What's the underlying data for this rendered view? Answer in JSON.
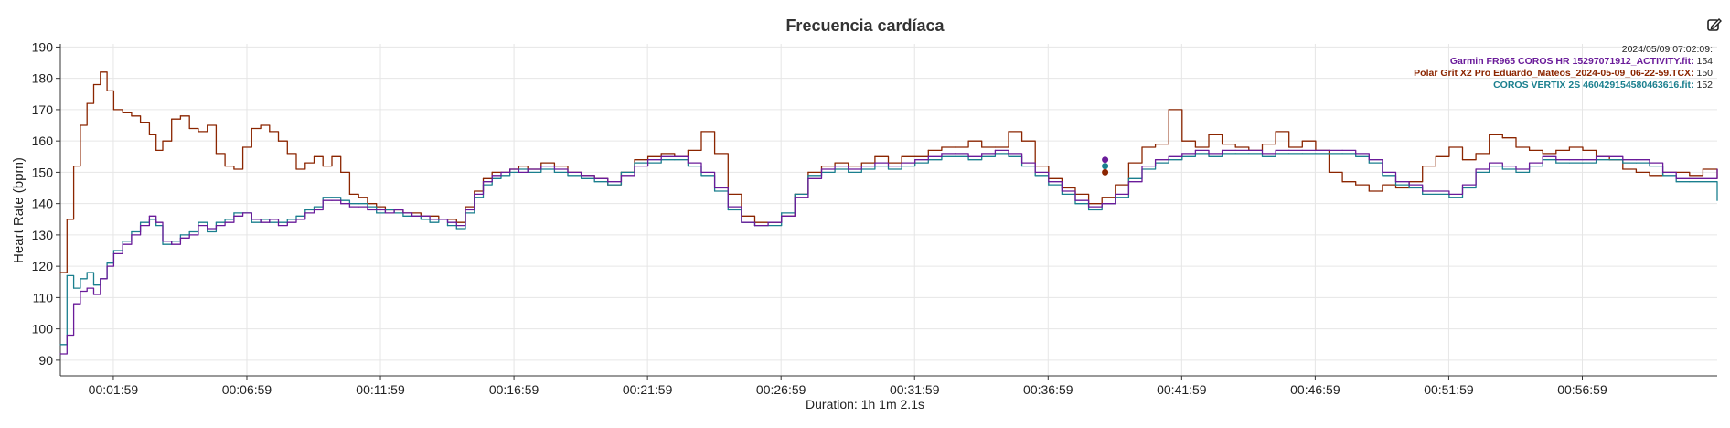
{
  "chart_data": {
    "type": "line",
    "title": "Frecuencia cardíaca",
    "ylabel": "Heart Rate (bpm)",
    "xlabel": "Duration: 1h 1m 2.1s",
    "ylim": [
      85,
      191
    ],
    "xlim": [
      0,
      3722
    ],
    "yticks": [
      90,
      100,
      110,
      120,
      130,
      140,
      150,
      160,
      170,
      180,
      190
    ],
    "xticks": [
      {
        "t": 119,
        "label": "00:01:59"
      },
      {
        "t": 419,
        "label": "00:06:59"
      },
      {
        "t": 719,
        "label": "00:11:59"
      },
      {
        "t": 1019,
        "label": "00:16:59"
      },
      {
        "t": 1319,
        "label": "00:21:59"
      },
      {
        "t": 1619,
        "label": "00:26:59"
      },
      {
        "t": 1919,
        "label": "00:31:59"
      },
      {
        "t": 2219,
        "label": "00:36:59"
      },
      {
        "t": 2519,
        "label": "00:41:59"
      },
      {
        "t": 2819,
        "label": "00:46:59"
      },
      {
        "t": 3119,
        "label": "00:51:59"
      },
      {
        "t": 3419,
        "label": "00:56:59"
      }
    ],
    "grid": true,
    "legend_position": "top-right",
    "tooltip": {
      "timestamp": "2024/05/09 07:02:09:",
      "entries": [
        {
          "name": "Garmin FR965 COROS HR 15297071912_ACTIVITY.fit:",
          "value": "154",
          "color": "#6a1b9a"
        },
        {
          "name": "Polar Grit X2 Pro Eduardo_Mateos_2024-05-09_06-22-59.TCX:",
          "value": "150",
          "color": "#8b2500"
        },
        {
          "name": "COROS VERTIX 2S 460429154580463616.fit:",
          "value": "152",
          "color": "#1a7f8e"
        }
      ]
    },
    "series": [
      {
        "name": "Garmin FR965 COROS HR 15297071912_ACTIVITY.fit",
        "color": "#6a1b9a",
        "x": [
          0,
          15,
          30,
          45,
          60,
          75,
          90,
          105,
          120,
          140,
          160,
          180,
          200,
          215,
          230,
          250,
          270,
          290,
          310,
          330,
          350,
          370,
          390,
          410,
          430,
          450,
          470,
          490,
          510,
          530,
          550,
          570,
          590,
          610,
          630,
          650,
          670,
          690,
          710,
          730,
          750,
          770,
          790,
          810,
          830,
          850,
          870,
          890,
          910,
          930,
          950,
          970,
          990,
          1010,
          1030,
          1050,
          1080,
          1110,
          1140,
          1170,
          1200,
          1230,
          1260,
          1290,
          1320,
          1350,
          1380,
          1410,
          1440,
          1470,
          1500,
          1530,
          1560,
          1590,
          1620,
          1650,
          1680,
          1710,
          1740,
          1770,
          1800,
          1830,
          1860,
          1890,
          1920,
          1950,
          1980,
          2010,
          2040,
          2070,
          2100,
          2130,
          2160,
          2190,
          2220,
          2250,
          2280,
          2310,
          2340,
          2370,
          2400,
          2430,
          2460,
          2490,
          2520,
          2550,
          2580,
          2610,
          2640,
          2670,
          2700,
          2730,
          2760,
          2790,
          2820,
          2850,
          2880,
          2910,
          2940,
          2970,
          3000,
          3030,
          3060,
          3090,
          3120,
          3150,
          3180,
          3210,
          3240,
          3270,
          3300,
          3330,
          3360,
          3390,
          3420,
          3450,
          3480,
          3510,
          3540,
          3570,
          3600,
          3630,
          3660,
          3690,
          3722
        ],
        "values": [
          92,
          98,
          108,
          112,
          113,
          111,
          116,
          120,
          124,
          127,
          130,
          133,
          136,
          134,
          128,
          127,
          129,
          130,
          133,
          132,
          133,
          134,
          136,
          137,
          135,
          134,
          135,
          133,
          134,
          135,
          137,
          138,
          141,
          141,
          140,
          139,
          139,
          138,
          138,
          137,
          138,
          137,
          136,
          136,
          135,
          135,
          134,
          133,
          138,
          143,
          147,
          149,
          150,
          151,
          150,
          151,
          152,
          151,
          150,
          149,
          148,
          147,
          149,
          152,
          154,
          155,
          155,
          153,
          150,
          145,
          139,
          134,
          133,
          134,
          136,
          142,
          148,
          151,
          152,
          151,
          152,
          153,
          152,
          153,
          154,
          155,
          156,
          156,
          155,
          156,
          157,
          156,
          153,
          150,
          147,
          144,
          141,
          139,
          140,
          143,
          147,
          152,
          154,
          155,
          156,
          157,
          156,
          157,
          157,
          157,
          156,
          157,
          157,
          157,
          157,
          157,
          157,
          156,
          154,
          150,
          147,
          146,
          144,
          144,
          143,
          146,
          151,
          153,
          152,
          151,
          153,
          155,
          154,
          154,
          154,
          155,
          155,
          154,
          154,
          153,
          150,
          148,
          148,
          148,
          151
        ]
      },
      {
        "name": "Polar Grit X2 Pro Eduardo_Mateos_2024-05-09_06-22-59.TCX",
        "color": "#8b2500",
        "x": [
          0,
          15,
          30,
          45,
          60,
          75,
          90,
          105,
          120,
          140,
          160,
          180,
          200,
          215,
          230,
          250,
          270,
          290,
          310,
          330,
          350,
          370,
          390,
          410,
          430,
          450,
          470,
          490,
          510,
          530,
          550,
          570,
          590,
          610,
          630,
          650,
          670,
          690,
          710,
          730,
          750,
          770,
          790,
          810,
          830,
          850,
          870,
          890,
          910,
          930,
          950,
          970,
          990,
          1010,
          1030,
          1050,
          1080,
          1110,
          1140,
          1170,
          1200,
          1230,
          1260,
          1290,
          1320,
          1350,
          1380,
          1410,
          1440,
          1470,
          1500,
          1530,
          1560,
          1590,
          1620,
          1650,
          1680,
          1710,
          1740,
          1770,
          1800,
          1830,
          1860,
          1890,
          1920,
          1950,
          1980,
          2010,
          2040,
          2070,
          2100,
          2130,
          2160,
          2190,
          2220,
          2250,
          2280,
          2310,
          2340,
          2370,
          2400,
          2430,
          2460,
          2490,
          2520,
          2550,
          2580,
          2610,
          2640,
          2670,
          2700,
          2730,
          2760,
          2790,
          2820,
          2850,
          2880,
          2910,
          2940,
          2970,
          3000,
          3030,
          3060,
          3090,
          3120,
          3150,
          3180,
          3210,
          3240,
          3270,
          3300,
          3330,
          3360,
          3390,
          3420,
          3450,
          3480,
          3510,
          3540,
          3570,
          3600,
          3630,
          3660,
          3690,
          3722
        ],
        "values": [
          118,
          135,
          152,
          165,
          172,
          178,
          182,
          176,
          170,
          169,
          168,
          166,
          162,
          157,
          160,
          167,
          168,
          164,
          163,
          165,
          156,
          152,
          151,
          158,
          164,
          165,
          163,
          160,
          156,
          151,
          153,
          155,
          152,
          155,
          150,
          143,
          142,
          140,
          139,
          138,
          138,
          137,
          137,
          136,
          136,
          135,
          135,
          134,
          139,
          144,
          148,
          150,
          150,
          151,
          152,
          151,
          153,
          152,
          150,
          149,
          148,
          146,
          150,
          154,
          155,
          156,
          155,
          157,
          163,
          156,
          143,
          136,
          134,
          134,
          136,
          143,
          150,
          152,
          153,
          152,
          153,
          155,
          153,
          155,
          155,
          157,
          158,
          158,
          160,
          158,
          158,
          163,
          160,
          152,
          148,
          145,
          143,
          140,
          142,
          146,
          153,
          158,
          159,
          170,
          160,
          158,
          162,
          159,
          158,
          157,
          159,
          163,
          158,
          160,
          157,
          150,
          147,
          146,
          144,
          146,
          145,
          147,
          152,
          155,
          158,
          154,
          156,
          162,
          161,
          158,
          157,
          156,
          157,
          158,
          157,
          155,
          154,
          151,
          150,
          149,
          150,
          150,
          149,
          151,
          148
        ]
      },
      {
        "name": "COROS VERTIX 2S 460429154580463616.fit",
        "color": "#1a7f8e",
        "x": [
          0,
          15,
          30,
          45,
          60,
          75,
          90,
          105,
          120,
          140,
          160,
          180,
          200,
          215,
          230,
          250,
          270,
          290,
          310,
          330,
          350,
          370,
          390,
          410,
          430,
          450,
          470,
          490,
          510,
          530,
          550,
          570,
          590,
          610,
          630,
          650,
          670,
          690,
          710,
          730,
          750,
          770,
          790,
          810,
          830,
          850,
          870,
          890,
          910,
          930,
          950,
          970,
          990,
          1010,
          1030,
          1050,
          1080,
          1110,
          1140,
          1170,
          1200,
          1230,
          1260,
          1290,
          1320,
          1350,
          1380,
          1410,
          1440,
          1470,
          1500,
          1530,
          1560,
          1590,
          1620,
          1650,
          1680,
          1710,
          1740,
          1770,
          1800,
          1830,
          1860,
          1890,
          1920,
          1950,
          1980,
          2010,
          2040,
          2070,
          2100,
          2130,
          2160,
          2190,
          2220,
          2250,
          2280,
          2310,
          2340,
          2370,
          2400,
          2430,
          2460,
          2490,
          2520,
          2550,
          2580,
          2610,
          2640,
          2670,
          2700,
          2730,
          2760,
          2790,
          2820,
          2850,
          2880,
          2910,
          2940,
          2970,
          3000,
          3030,
          3060,
          3090,
          3120,
          3150,
          3180,
          3210,
          3240,
          3270,
          3300,
          3330,
          3360,
          3390,
          3420,
          3450,
          3480,
          3510,
          3540,
          3570,
          3600,
          3630,
          3660,
          3690,
          3722
        ],
        "values": [
          95,
          117,
          113,
          116,
          118,
          114,
          116,
          121,
          125,
          128,
          131,
          134,
          135,
          133,
          127,
          128,
          130,
          131,
          134,
          131,
          134,
          135,
          137,
          137,
          134,
          135,
          134,
          134,
          135,
          136,
          138,
          139,
          142,
          142,
          141,
          140,
          140,
          139,
          137,
          138,
          137,
          136,
          136,
          135,
          134,
          135,
          133,
          132,
          137,
          142,
          146,
          148,
          149,
          150,
          151,
          150,
          151,
          150,
          149,
          148,
          147,
          146,
          150,
          153,
          153,
          154,
          154,
          152,
          149,
          144,
          138,
          134,
          133,
          133,
          137,
          143,
          149,
          150,
          151,
          150,
          151,
          152,
          151,
          152,
          153,
          154,
          155,
          155,
          154,
          155,
          156,
          155,
          152,
          149,
          146,
          143,
          140,
          138,
          140,
          142,
          148,
          151,
          153,
          154,
          155,
          156,
          155,
          156,
          156,
          156,
          155,
          156,
          156,
          156,
          156,
          156,
          156,
          155,
          153,
          149,
          146,
          145,
          143,
          143,
          142,
          145,
          150,
          152,
          151,
          150,
          152,
          154,
          153,
          153,
          153,
          154,
          154,
          153,
          153,
          152,
          149,
          147,
          147,
          147,
          141
        ]
      }
    ]
  },
  "icons": {
    "edit": "external-edit-icon"
  }
}
